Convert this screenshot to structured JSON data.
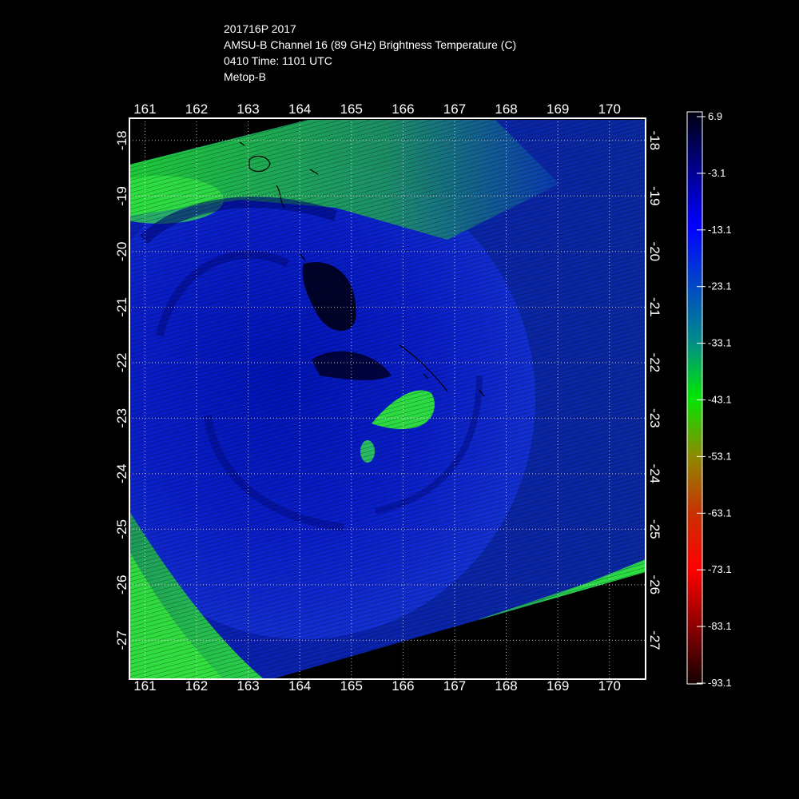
{
  "header": {
    "storm_line": "201716P 2017",
    "product_line": "AMSU-B Channel 16 (89 GHz) Brightness Temperature (C)",
    "time_line": "0410 Time: 1101 UTC",
    "satellite_line": "Metop-B"
  },
  "map": {
    "longitude_ticks": [
      "161",
      "162",
      "163",
      "164",
      "165",
      "166",
      "167",
      "168",
      "169",
      "170"
    ],
    "latitude_ticks": [
      "-18",
      "-19",
      "-20",
      "-21",
      "-22",
      "-23",
      "-24",
      "-25",
      "-26",
      "-27"
    ],
    "lon_range": [
      160.7,
      170.7
    ],
    "lat_range": [
      -17.6,
      -27.7
    ],
    "grid": "dotted",
    "background_color": "#000000"
  },
  "colorbar": {
    "labels": [
      "6.9",
      "-3.1",
      "-13.1",
      "-23.1",
      "-33.1",
      "-43.1",
      "-53.1",
      "-63.1",
      "-73.1",
      "-83.1",
      "-93.1"
    ],
    "colors": [
      "#000010",
      "#00008c",
      "#0000ff",
      "#0046c8",
      "#008c8c",
      "#00e600",
      "#8c8c00",
      "#c83200",
      "#ff0000",
      "#8c0000",
      "#140000"
    ]
  }
}
